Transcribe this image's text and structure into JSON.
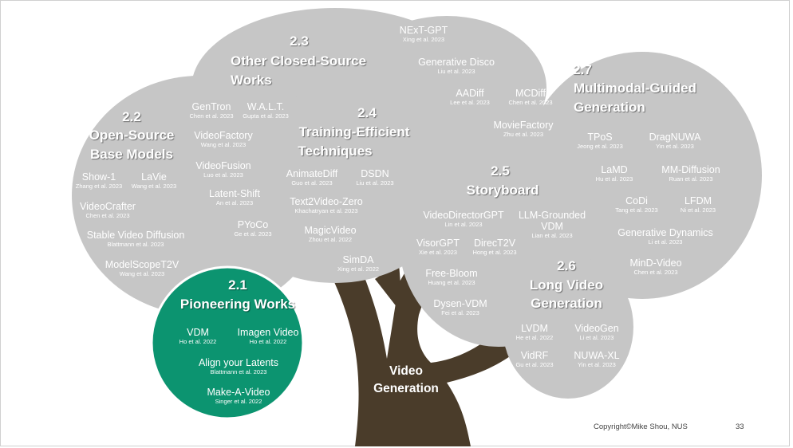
{
  "title": "Video Generation",
  "footer": {
    "copyright": "Copyright©Mike Shou, NUS",
    "page": "33"
  },
  "sections": {
    "s21": {
      "num": "2.1",
      "title": "Pioneering Works"
    },
    "s22": {
      "num": "2.2",
      "title_line1": "Open-Source",
      "title_line2": "Base Models"
    },
    "s23": {
      "num": "2.3",
      "title_line1": "Other Closed-Source",
      "title_line2": "Works"
    },
    "s24": {
      "num": "2.4",
      "title_line1": "Training-Efficient",
      "title_line2": "Techniques"
    },
    "s25": {
      "num": "2.5",
      "title": "Storyboard"
    },
    "s26": {
      "num": "2.6",
      "title_line1": "Long Video",
      "title_line2": "Generation"
    },
    "s27": {
      "num": "2.7",
      "title_line1": "Multimodal-Guided",
      "title_line2": "Generation"
    }
  },
  "works": [
    {
      "name": "VDM",
      "ref": "Ho et al. 2022"
    },
    {
      "name": "Imagen Video",
      "ref": "Ho et al. 2022"
    },
    {
      "name": "Align your Latents",
      "ref": "Blattmann et al. 2023"
    },
    {
      "name": "Make-A-Video",
      "ref": "Singer et al. 2022"
    },
    {
      "name": "Show-1",
      "ref": "Zhang et al. 2023"
    },
    {
      "name": "LaVie",
      "ref": "Wang et al. 2023"
    },
    {
      "name": "VideoCrafter",
      "ref": "Chen et al. 2023"
    },
    {
      "name": "Stable Video Diffusion",
      "ref": "Blattmann et al. 2023"
    },
    {
      "name": "ModelScopeT2V",
      "ref": "Wang et al. 2023"
    },
    {
      "name": "GenTron",
      "ref": "Chen et al. 2023"
    },
    {
      "name": "W.A.L.T.",
      "ref": "Gupta et al. 2023"
    },
    {
      "name": "VideoFactory",
      "ref": "Wang et al. 2023"
    },
    {
      "name": "VideoFusion",
      "ref": "Luo et al. 2023"
    },
    {
      "name": "Latent-Shift",
      "ref": "An et al. 2023"
    },
    {
      "name": "PYoCo",
      "ref": "Ge et al. 2023"
    },
    {
      "name": "AnimateDiff",
      "ref": "Guo et al. 2023"
    },
    {
      "name": "DSDN",
      "ref": "Liu et al. 2023"
    },
    {
      "name": "Text2Video-Zero",
      "ref": "Khachatryan et al. 2023"
    },
    {
      "name": "MagicVideo",
      "ref": "Zhou et al. 2022"
    },
    {
      "name": "SimDA",
      "ref": "Xing et al. 2022"
    },
    {
      "name": "NExT-GPT",
      "ref": "Xing et al. 2023"
    },
    {
      "name": "Generative Disco",
      "ref": "Liu et al. 2023"
    },
    {
      "name": "AADiff",
      "ref": "Lee et al. 2023"
    },
    {
      "name": "MCDiff",
      "ref": "Chen et al. 2023"
    },
    {
      "name": "MovieFactory",
      "ref": "Zhu et al. 2023"
    },
    {
      "name": "VideoDirectorGPT",
      "ref": "Lin et al. 2023"
    },
    {
      "name": "LLM-Grounded VDM",
      "ref": "Lian et al. 2023"
    },
    {
      "name": "VisorGPT",
      "ref": "Xie et al. 2023"
    },
    {
      "name": "DirecT2V",
      "ref": "Hong et al. 2023"
    },
    {
      "name": "Free-Bloom",
      "ref": "Huang et al. 2023"
    },
    {
      "name": "Dysen-VDM",
      "ref": "Fei et al. 2023"
    },
    {
      "name": "TPoS",
      "ref": "Jeong et al. 2023"
    },
    {
      "name": "DragNUWA",
      "ref": "Yin et al. 2023"
    },
    {
      "name": "LaMD",
      "ref": "Hu et al. 2023"
    },
    {
      "name": "MM-Diffusion",
      "ref": "Ruan et al. 2023"
    },
    {
      "name": "CoDi",
      "ref": "Tang et al. 2023"
    },
    {
      "name": "LFDM",
      "ref": "Ni et al. 2023"
    },
    {
      "name": "Generative Dynamics",
      "ref": "Li et al. 2023"
    },
    {
      "name": "MinD-Video",
      "ref": "Chen et al. 2023"
    },
    {
      "name": "LVDM",
      "ref": "He et al. 2022"
    },
    {
      "name": "VideoGen",
      "ref": "Li et al. 2023"
    },
    {
      "name": "VidRF",
      "ref": "Gu et al. 2023"
    },
    {
      "name": "NUWA-XL",
      "ref": "Yin et al. 2023"
    }
  ],
  "colors": {
    "canopy": "#c6c6c6",
    "pioneer": "#0c9470",
    "trunk": "#4a3c2a",
    "text": "#ffffff"
  }
}
